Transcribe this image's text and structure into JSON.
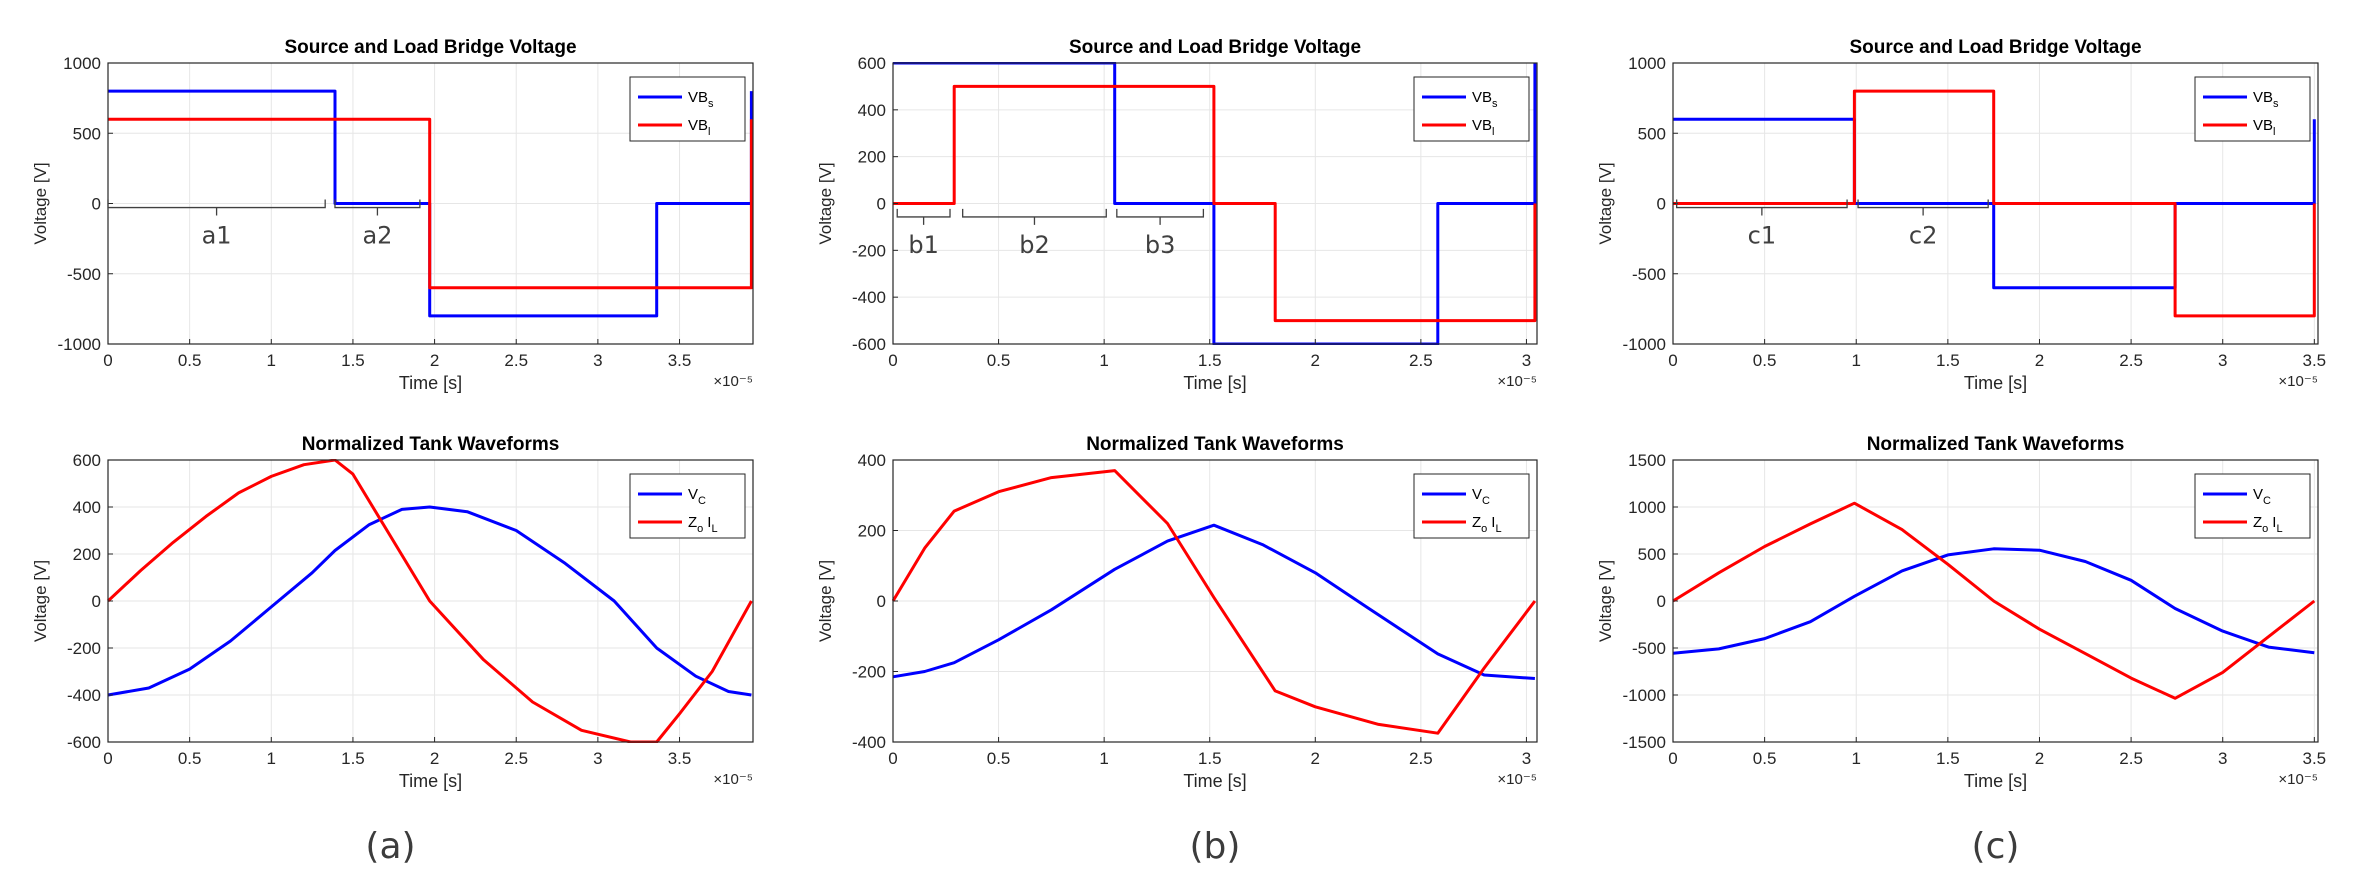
{
  "panel_labels": [
    "(a)",
    "(b)",
    "(c)"
  ],
  "colors": {
    "blue": "#0000ff",
    "red": "#ff0000",
    "grid": "#e6e6e6",
    "axis": "#262626"
  },
  "chart_data": [
    {
      "type": "line",
      "title": "Source and Load Bridge Voltage",
      "xlabel": "Time [s]",
      "ylabel": "Voltage [V]",
      "x_multiplier": "×10⁻⁵",
      "xlim": [
        0,
        3.95
      ],
      "ylim": [
        -1000,
        1000
      ],
      "xticks": [
        0,
        0.5,
        1,
        1.5,
        2,
        2.5,
        3,
        3.5
      ],
      "yticks": [
        -1000,
        -500,
        0,
        500,
        1000
      ],
      "grid": true,
      "legend_position": "top-right",
      "series": [
        {
          "name": "VB",
          "sub": "s",
          "color": "#0000ff",
          "x": [
            0,
            1.39,
            1.39,
            1.97,
            1.97,
            3.36,
            3.36,
            3.94,
            3.94
          ],
          "y": [
            800,
            800,
            0,
            0,
            -800,
            -800,
            0,
            0,
            800
          ]
        },
        {
          "name": "VB",
          "sub": "l",
          "color": "#ff0000",
          "x": [
            0,
            1.97,
            1.97,
            3.94,
            3.94
          ],
          "y": [
            600,
            600,
            -600,
            -600,
            600
          ]
        }
      ],
      "annotations": [
        {
          "label": "a1",
          "x0": 0,
          "x1": 1.33,
          "y": -100
        },
        {
          "label": "a2",
          "x0": 1.39,
          "x1": 1.91,
          "y": -100
        }
      ]
    },
    {
      "type": "line",
      "title": "Source and Load Bridge Voltage",
      "xlabel": "Time [s]",
      "ylabel": "Voltage [V]",
      "x_multiplier": "×10⁻⁵",
      "xlim": [
        0,
        3.05
      ],
      "ylim": [
        -600,
        600
      ],
      "xticks": [
        0,
        0.5,
        1,
        1.5,
        2,
        2.5,
        3
      ],
      "yticks": [
        -600,
        -400,
        -200,
        0,
        200,
        400,
        600
      ],
      "grid": true,
      "legend_position": "top-right",
      "series": [
        {
          "name": "VB",
          "sub": "s",
          "color": "#0000ff",
          "x": [
            0,
            1.05,
            1.05,
            1.52,
            1.52,
            2.58,
            2.58,
            3.04,
            3.04
          ],
          "y": [
            600,
            600,
            0,
            0,
            -600,
            -600,
            0,
            0,
            600
          ]
        },
        {
          "name": "VB",
          "sub": "l",
          "color": "#ff0000",
          "x": [
            0,
            0.29,
            0.29,
            1.52,
            1.52,
            1.81,
            1.81,
            3.04,
            3.04
          ],
          "y": [
            0,
            0,
            500,
            500,
            0,
            0,
            -500,
            -500,
            0
          ]
        }
      ],
      "annotations": [
        {
          "label": "b1",
          "x0": 0.02,
          "x1": 0.27,
          "y": -100
        },
        {
          "label": "b2",
          "x0": 0.33,
          "x1": 1.01,
          "y": -100
        },
        {
          "label": "b3",
          "x0": 1.06,
          "x1": 1.47,
          "y": -100
        }
      ]
    },
    {
      "type": "line",
      "title": "Source and Load Bridge Voltage",
      "xlabel": "Time [s]",
      "ylabel": "Voltage [V]",
      "x_multiplier": "×10⁻⁵",
      "xlim": [
        0,
        3.52
      ],
      "ylim": [
        -1000,
        1000
      ],
      "xticks": [
        0,
        0.5,
        1,
        1.5,
        2,
        2.5,
        3,
        3.5
      ],
      "yticks": [
        -1000,
        -500,
        0,
        500,
        1000
      ],
      "grid": true,
      "legend_position": "top-right",
      "series": [
        {
          "name": "VB",
          "sub": "s",
          "color": "#0000ff",
          "x": [
            0,
            0.99,
            0.99,
            1.75,
            1.75,
            2.74,
            2.74,
            3.5,
            3.5
          ],
          "y": [
            600,
            600,
            0,
            0,
            -600,
            -600,
            0,
            0,
            600
          ]
        },
        {
          "name": "VB",
          "sub": "l",
          "color": "#ff0000",
          "x": [
            0,
            0.99,
            0.99,
            1.75,
            1.75,
            2.74,
            2.74,
            3.5,
            3.5
          ],
          "y": [
            0,
            0,
            800,
            800,
            0,
            0,
            -800,
            -800,
            0
          ]
        }
      ],
      "annotations": [
        {
          "label": "c1",
          "x0": 0.02,
          "x1": 0.95,
          "y": -100
        },
        {
          "label": "c2",
          "x0": 1.01,
          "x1": 1.72,
          "y": -100
        }
      ]
    },
    {
      "type": "line",
      "title": "Normalized Tank Waveforms",
      "xlabel": "Time [s]",
      "ylabel": "Voltage [V]",
      "x_multiplier": "×10⁻⁵",
      "xlim": [
        0,
        3.95
      ],
      "ylim": [
        -600,
        600
      ],
      "xticks": [
        0,
        0.5,
        1,
        1.5,
        2,
        2.5,
        3,
        3.5
      ],
      "yticks": [
        -600,
        -400,
        -200,
        0,
        200,
        400,
        600
      ],
      "grid": true,
      "legend_position": "top-right",
      "series": [
        {
          "name": "V",
          "sub": "C",
          "color": "#0000ff",
          "x": [
            0,
            0.25,
            0.5,
            0.75,
            1.0,
            1.25,
            1.39,
            1.6,
            1.8,
            1.97,
            2.2,
            2.5,
            2.8,
            3.1,
            3.36,
            3.6,
            3.8,
            3.94
          ],
          "y": [
            -400,
            -370,
            -290,
            -170,
            -25,
            120,
            215,
            325,
            390,
            400,
            380,
            300,
            160,
            0,
            -200,
            -320,
            -385,
            -400
          ]
        },
        {
          "name": "Z",
          "sub": "o",
          "name2": "I",
          "sub2": "L",
          "color": "#ff0000",
          "x": [
            0,
            0.2,
            0.4,
            0.6,
            0.8,
            1.0,
            1.2,
            1.39,
            1.5,
            1.97,
            2.3,
            2.6,
            2.9,
            3.2,
            3.36,
            3.5,
            3.7,
            3.94
          ],
          "y": [
            0,
            130,
            250,
            360,
            460,
            530,
            580,
            600,
            540,
            0,
            -250,
            -430,
            -550,
            -600,
            -600,
            -480,
            -300,
            0
          ]
        }
      ]
    },
    {
      "type": "line",
      "title": "Normalized Tank Waveforms",
      "xlabel": "Time [s]",
      "ylabel": "Voltage [V]",
      "x_multiplier": "×10⁻⁵",
      "xlim": [
        0,
        3.05
      ],
      "ylim": [
        -400,
        400
      ],
      "xticks": [
        0,
        0.5,
        1,
        1.5,
        2,
        2.5,
        3
      ],
      "yticks": [
        -400,
        -200,
        0,
        200,
        400
      ],
      "grid": true,
      "legend_position": "top-right",
      "series": [
        {
          "name": "V",
          "sub": "C",
          "color": "#0000ff",
          "x": [
            0,
            0.15,
            0.29,
            0.5,
            0.75,
            1.05,
            1.3,
            1.52,
            1.75,
            2.0,
            2.25,
            2.58,
            2.8,
            3.04
          ],
          "y": [
            -215,
            -200,
            -175,
            -110,
            -25,
            90,
            170,
            215,
            160,
            80,
            -20,
            -150,
            -210,
            -220
          ]
        },
        {
          "name": "Z",
          "sub": "o",
          "name2": "I",
          "sub2": "L",
          "color": "#ff0000",
          "x": [
            0,
            0.15,
            0.29,
            0.5,
            0.75,
            1.05,
            1.3,
            1.52,
            1.81,
            2.0,
            2.3,
            2.58,
            2.8,
            3.04
          ],
          "y": [
            0,
            150,
            255,
            310,
            350,
            370,
            220,
            10,
            -255,
            -300,
            -350,
            -375,
            -190,
            0
          ]
        }
      ]
    },
    {
      "type": "line",
      "title": "Normalized Tank Waveforms",
      "xlabel": "Time [s]",
      "ylabel": "Voltage [V]",
      "x_multiplier": "×10⁻⁵",
      "xlim": [
        0,
        3.52
      ],
      "ylim": [
        -1500,
        1500
      ],
      "xticks": [
        0,
        0.5,
        1,
        1.5,
        2,
        2.5,
        3,
        3.5
      ],
      "yticks": [
        -1500,
        -1000,
        -500,
        0,
        500,
        1000,
        1500
      ],
      "grid": true,
      "legend_position": "top-right",
      "series": [
        {
          "name": "V",
          "sub": "C",
          "color": "#0000ff",
          "x": [
            0,
            0.25,
            0.5,
            0.75,
            0.99,
            1.25,
            1.5,
            1.75,
            2.0,
            2.25,
            2.5,
            2.74,
            3.0,
            3.25,
            3.5
          ],
          "y": [
            -555,
            -510,
            -400,
            -220,
            50,
            320,
            490,
            555,
            540,
            420,
            220,
            -80,
            -320,
            -490,
            -550
          ]
        },
        {
          "name": "Z",
          "sub": "o",
          "name2": "I",
          "sub2": "L",
          "color": "#ff0000",
          "x": [
            0,
            0.25,
            0.5,
            0.75,
            0.99,
            1.25,
            1.5,
            1.75,
            2.0,
            2.25,
            2.5,
            2.74,
            3.0,
            3.25,
            3.5
          ],
          "y": [
            0,
            300,
            580,
            820,
            1040,
            760,
            390,
            0,
            -300,
            -560,
            -820,
            -1035,
            -760,
            -380,
            0
          ]
        }
      ]
    }
  ]
}
